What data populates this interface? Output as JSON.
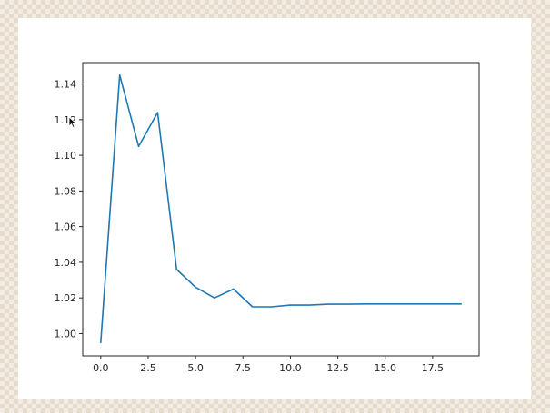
{
  "chart_data": {
    "type": "line",
    "title": "",
    "xlabel": "",
    "ylabel": "",
    "xlim": [
      -0.95,
      19.95
    ],
    "ylim": [
      0.9875,
      1.152
    ],
    "x_ticks": [
      0.0,
      2.5,
      5.0,
      7.5,
      10.0,
      12.5,
      15.0,
      17.5
    ],
    "x_tick_labels": [
      "0.0",
      "2.5",
      "5.0",
      "7.5",
      "10.0",
      "12.5",
      "15.0",
      "17.5"
    ],
    "y_ticks": [
      1.0,
      1.02,
      1.04,
      1.06,
      1.08,
      1.1,
      1.12,
      1.14
    ],
    "y_tick_labels": [
      "1.00",
      "1.02",
      "1.04",
      "1.06",
      "1.08",
      "1.10",
      "1.12",
      "1.14"
    ],
    "grid": false,
    "series": [
      {
        "color": "#1f77b4",
        "x": [
          0,
          1,
          2,
          3,
          4,
          5,
          6,
          7,
          8,
          9,
          10,
          11,
          12,
          13,
          14,
          15,
          16,
          17,
          18,
          19
        ],
        "y": [
          0.995,
          1.145,
          1.105,
          1.124,
          1.036,
          1.026,
          1.02,
          1.025,
          1.015,
          1.015,
          1.016,
          1.016,
          1.0165,
          1.0165,
          1.0166,
          1.0166,
          1.0166,
          1.0166,
          1.0166,
          1.0166
        ]
      }
    ]
  },
  "cursor": {
    "icon": "mouse-cursor-icon"
  }
}
